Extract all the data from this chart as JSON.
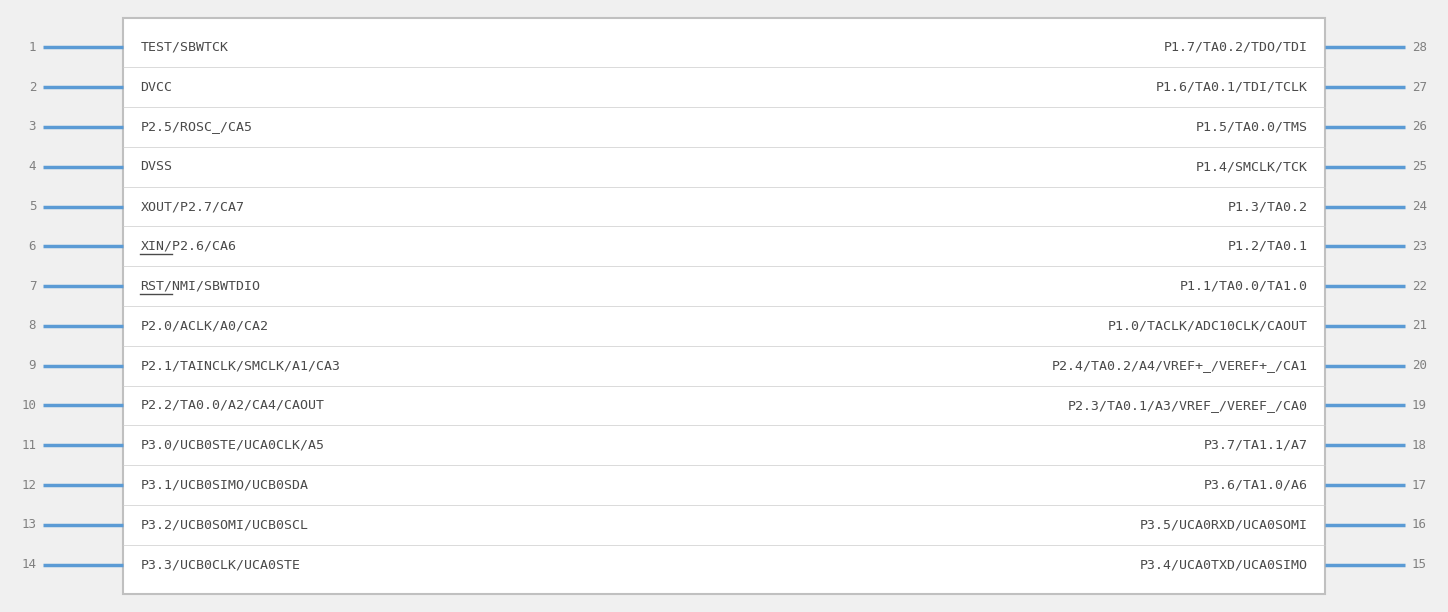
{
  "bg_color": "#f0f0f0",
  "box_color": "#ffffff",
  "box_edge_color": "#c0c0c0",
  "pin_line_color": "#5b9bd5",
  "pin_number_color": "#808080",
  "pin_label_color": "#4a4a4a",
  "left_pins": [
    {
      "num": 1,
      "label": "TEST/SBWTCK",
      "underline_chars": 0
    },
    {
      "num": 2,
      "label": "DVCC",
      "underline_chars": 0
    },
    {
      "num": 3,
      "label": "P2.5/ROSC_/CA5",
      "underline_chars": 0
    },
    {
      "num": 4,
      "label": "DVSS",
      "underline_chars": 0
    },
    {
      "num": 5,
      "label": "XOUT/P2.7/CA7",
      "underline_chars": 0
    },
    {
      "num": 6,
      "label": "XIN/P2.6/CA6",
      "underline_chars": 3
    },
    {
      "num": 7,
      "label": "RST/NMI/SBWTDIO",
      "underline_chars": 3
    },
    {
      "num": 8,
      "label": "P2.0/ACLK/A0/CA2",
      "underline_chars": 0
    },
    {
      "num": 9,
      "label": "P2.1/TAINCLK/SMCLK/A1/CA3",
      "underline_chars": 0
    },
    {
      "num": 10,
      "label": "P2.2/TA0.0/A2/CA4/CAOUT",
      "underline_chars": 0
    },
    {
      "num": 11,
      "label": "P3.0/UCB0STE/UCA0CLK/A5",
      "underline_chars": 0
    },
    {
      "num": 12,
      "label": "P3.1/UCB0SIMO/UCB0SDA",
      "underline_chars": 0
    },
    {
      "num": 13,
      "label": "P3.2/UCB0SOMI/UCB0SCL",
      "underline_chars": 0
    },
    {
      "num": 14,
      "label": "P3.3/UCB0CLK/UCA0STE",
      "underline_chars": 0
    }
  ],
  "right_pins": [
    {
      "num": 28,
      "label": "P1.7/TA0.2/TDO/TDI",
      "underline_chars": 0
    },
    {
      "num": 27,
      "label": "P1.6/TA0.1/TDI/TCLK",
      "underline_chars": 0
    },
    {
      "num": 26,
      "label": "P1.5/TA0.0/TMS",
      "underline_chars": 0
    },
    {
      "num": 25,
      "label": "P1.4/SMCLK/TCK",
      "underline_chars": 0
    },
    {
      "num": 24,
      "label": "P1.3/TA0.2",
      "underline_chars": 0
    },
    {
      "num": 23,
      "label": "P1.2/TA0.1",
      "underline_chars": 0
    },
    {
      "num": 22,
      "label": "P1.1/TA0.0/TA1.0",
      "underline_chars": 0
    },
    {
      "num": 21,
      "label": "P1.0/TACLK/ADC10CLK/CAOUT",
      "underline_chars": 0
    },
    {
      "num": 20,
      "label": "P2.4/TA0.2/A4/VREF+_/VEREF+_/CA1",
      "underline_chars": 0
    },
    {
      "num": 19,
      "label": "P2.3/TA0.1/A3/VREF_/VEREF_/CA0",
      "underline_chars": 0
    },
    {
      "num": 18,
      "label": "P3.7/TA1.1/A7",
      "underline_chars": 0
    },
    {
      "num": 17,
      "label": "P3.6/TA1.0/A6",
      "underline_chars": 0
    },
    {
      "num": 16,
      "label": "P3.5/UCA0RXD/UCA0SOMI",
      "underline_chars": 0
    },
    {
      "num": 15,
      "label": "P3.4/UCA0TXD/UCA0SIMO",
      "underline_chars": 0
    }
  ]
}
